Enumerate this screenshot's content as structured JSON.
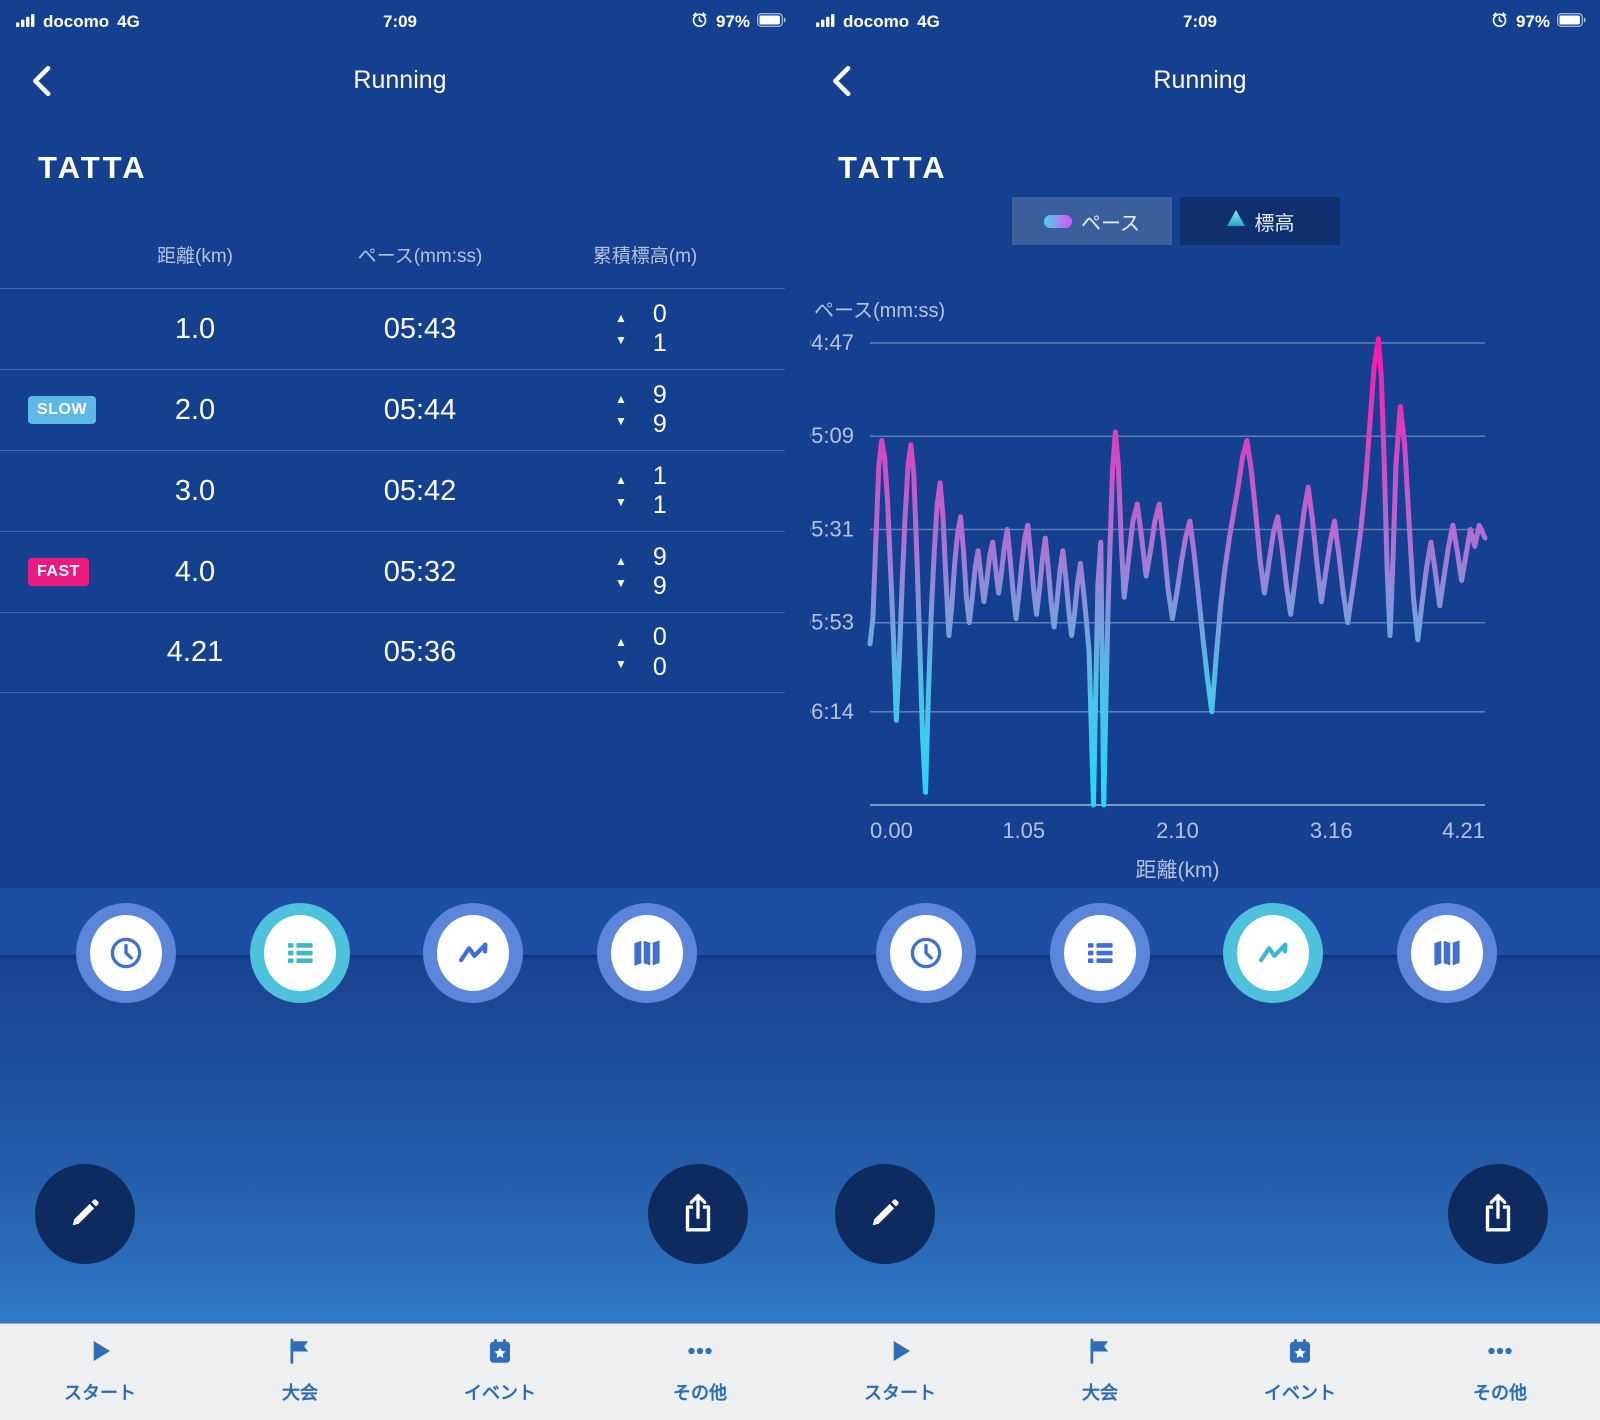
{
  "status_bar": {
    "carrier": "docomo",
    "network": "4G",
    "time": "7:09",
    "battery": "97%"
  },
  "nav": {
    "title": "Running"
  },
  "logo": "TATTA",
  "splits": {
    "headers": [
      "距離(km)",
      "ペース(mm:ss)",
      "累積標高(m)"
    ],
    "rows": [
      {
        "badge": "",
        "distance": "1.0",
        "pace": "05:43",
        "up": "0",
        "down": "1"
      },
      {
        "badge": "SLOW",
        "distance": "2.0",
        "pace": "05:44",
        "up": "9",
        "down": "9"
      },
      {
        "badge": "",
        "distance": "3.0",
        "pace": "05:42",
        "up": "1",
        "down": "1"
      },
      {
        "badge": "FAST",
        "distance": "4.0",
        "pace": "05:32",
        "up": "9",
        "down": "9"
      },
      {
        "badge": "",
        "distance": "4.21",
        "pace": "05:36",
        "up": "0",
        "down": "0"
      }
    ],
    "badge_colors": {
      "SLOW": "#5fb9e8",
      "FAST": "#ea1a7f"
    }
  },
  "chart_tabs": [
    {
      "label": "ペース",
      "selected": true
    },
    {
      "label": "標高",
      "selected": false
    }
  ],
  "chart_data": {
    "type": "line",
    "ylabel": "ペース(mm:ss)",
    "xlabel": "距離(km)",
    "y_ticks": [
      {
        "label": "04:47",
        "sec": 287
      },
      {
        "label": "05:09",
        "sec": 309
      },
      {
        "label": "05:31",
        "sec": 331
      },
      {
        "label": "05:53",
        "sec": 353
      },
      {
        "label": "06:14",
        "sec": 374
      }
    ],
    "x_ticks": [
      "0.00",
      "1.05",
      "2.10",
      "3.16",
      "4.21"
    ],
    "x_range": [
      0,
      4.21
    ],
    "y_range_sec": [
      287,
      396
    ],
    "grid": true,
    "legend_position": "none",
    "gradient": {
      "top": "#ff16ac",
      "mid": "#b06fd4",
      "low": "#4fc0e8",
      "bottom": "#27d8f7"
    },
    "points": [
      [
        0.0,
        358
      ],
      [
        0.02,
        352
      ],
      [
        0.04,
        334
      ],
      [
        0.06,
        316
      ],
      [
        0.08,
        310
      ],
      [
        0.1,
        314
      ],
      [
        0.12,
        324
      ],
      [
        0.14,
        340
      ],
      [
        0.16,
        356
      ],
      [
        0.18,
        376
      ],
      [
        0.2,
        362
      ],
      [
        0.22,
        344
      ],
      [
        0.24,
        328
      ],
      [
        0.26,
        316
      ],
      [
        0.28,
        311
      ],
      [
        0.3,
        318
      ],
      [
        0.32,
        336
      ],
      [
        0.34,
        358
      ],
      [
        0.36,
        380
      ],
      [
        0.38,
        393
      ],
      [
        0.4,
        370
      ],
      [
        0.42,
        350
      ],
      [
        0.44,
        336
      ],
      [
        0.46,
        325
      ],
      [
        0.48,
        320
      ],
      [
        0.5,
        328
      ],
      [
        0.52,
        343
      ],
      [
        0.54,
        356
      ],
      [
        0.56,
        349
      ],
      [
        0.58,
        339
      ],
      [
        0.6,
        332
      ],
      [
        0.62,
        328
      ],
      [
        0.64,
        336
      ],
      [
        0.66,
        347
      ],
      [
        0.68,
        353
      ],
      [
        0.7,
        347
      ],
      [
        0.72,
        340
      ],
      [
        0.74,
        336
      ],
      [
        0.76,
        342
      ],
      [
        0.78,
        348
      ],
      [
        0.8,
        343
      ],
      [
        0.82,
        337
      ],
      [
        0.84,
        334
      ],
      [
        0.86,
        340
      ],
      [
        0.88,
        346
      ],
      [
        0.9,
        341
      ],
      [
        0.92,
        335
      ],
      [
        0.94,
        331
      ],
      [
        0.96,
        338
      ],
      [
        0.98,
        346
      ],
      [
        1.0,
        352
      ],
      [
        1.02,
        346
      ],
      [
        1.04,
        339
      ],
      [
        1.06,
        333
      ],
      [
        1.08,
        330
      ],
      [
        1.1,
        337
      ],
      [
        1.12,
        345
      ],
      [
        1.14,
        351
      ],
      [
        1.16,
        345
      ],
      [
        1.18,
        338
      ],
      [
        1.2,
        333
      ],
      [
        1.22,
        340
      ],
      [
        1.24,
        348
      ],
      [
        1.26,
        354
      ],
      [
        1.28,
        348
      ],
      [
        1.3,
        341
      ],
      [
        1.32,
        336
      ],
      [
        1.34,
        342
      ],
      [
        1.36,
        350
      ],
      [
        1.38,
        356
      ],
      [
        1.4,
        351
      ],
      [
        1.42,
        344
      ],
      [
        1.44,
        339
      ],
      [
        1.46,
        345
      ],
      [
        1.48,
        352
      ],
      [
        1.5,
        360
      ],
      [
        1.53,
        396
      ],
      [
        1.56,
        344
      ],
      [
        1.58,
        334
      ],
      [
        1.6,
        396
      ],
      [
        1.63,
        349
      ],
      [
        1.66,
        317
      ],
      [
        1.68,
        308
      ],
      [
        1.7,
        316
      ],
      [
        1.72,
        334
      ],
      [
        1.74,
        347
      ],
      [
        1.76,
        341
      ],
      [
        1.78,
        335
      ],
      [
        1.8,
        329
      ],
      [
        1.83,
        325
      ],
      [
        1.86,
        333
      ],
      [
        1.89,
        342
      ],
      [
        1.92,
        336
      ],
      [
        1.95,
        329
      ],
      [
        1.98,
        325
      ],
      [
        2.01,
        334
      ],
      [
        2.04,
        345
      ],
      [
        2.07,
        352
      ],
      [
        2.1,
        346
      ],
      [
        2.13,
        339
      ],
      [
        2.16,
        333
      ],
      [
        2.19,
        329
      ],
      [
        2.22,
        337
      ],
      [
        2.25,
        347
      ],
      [
        2.28,
        357
      ],
      [
        2.31,
        366
      ],
      [
        2.34,
        374
      ],
      [
        2.37,
        361
      ],
      [
        2.4,
        349
      ],
      [
        2.43,
        340
      ],
      [
        2.46,
        333
      ],
      [
        2.49,
        327
      ],
      [
        2.52,
        321
      ],
      [
        2.55,
        314
      ],
      [
        2.58,
        310
      ],
      [
        2.61,
        317
      ],
      [
        2.64,
        327
      ],
      [
        2.67,
        338
      ],
      [
        2.7,
        346
      ],
      [
        2.73,
        339
      ],
      [
        2.76,
        332
      ],
      [
        2.79,
        328
      ],
      [
        2.82,
        335
      ],
      [
        2.85,
        344
      ],
      [
        2.88,
        351
      ],
      [
        2.91,
        343
      ],
      [
        2.94,
        335
      ],
      [
        2.97,
        327
      ],
      [
        3.0,
        321
      ],
      [
        3.03,
        329
      ],
      [
        3.06,
        339
      ],
      [
        3.09,
        348
      ],
      [
        3.12,
        341
      ],
      [
        3.15,
        334
      ],
      [
        3.18,
        329
      ],
      [
        3.21,
        337
      ],
      [
        3.24,
        346
      ],
      [
        3.27,
        353
      ],
      [
        3.3,
        346
      ],
      [
        3.33,
        339
      ],
      [
        3.36,
        331
      ],
      [
        3.39,
        321
      ],
      [
        3.42,
        307
      ],
      [
        3.45,
        293
      ],
      [
        3.48,
        286
      ],
      [
        3.5,
        295
      ],
      [
        3.52,
        315
      ],
      [
        3.54,
        340
      ],
      [
        3.56,
        356
      ],
      [
        3.58,
        338
      ],
      [
        3.6,
        316
      ],
      [
        3.63,
        302
      ],
      [
        3.66,
        311
      ],
      [
        3.69,
        329
      ],
      [
        3.72,
        347
      ],
      [
        3.75,
        357
      ],
      [
        3.78,
        348
      ],
      [
        3.81,
        340
      ],
      [
        3.84,
        334
      ],
      [
        3.87,
        341
      ],
      [
        3.9,
        349
      ],
      [
        3.93,
        342
      ],
      [
        3.96,
        335
      ],
      [
        3.99,
        330
      ],
      [
        4.02,
        336
      ],
      [
        4.05,
        343
      ],
      [
        4.08,
        337
      ],
      [
        4.11,
        331
      ],
      [
        4.14,
        335
      ],
      [
        4.17,
        330
      ],
      [
        4.21,
        333
      ]
    ]
  },
  "dock": {
    "items": [
      {
        "name": "history-clock",
        "icon": "clock"
      },
      {
        "name": "splits-list",
        "icon": "list"
      },
      {
        "name": "pace-chart",
        "icon": "pulse"
      },
      {
        "name": "route-map",
        "icon": "map"
      }
    ]
  },
  "left": {
    "dock_selected": 1
  },
  "right": {
    "dock_selected": 2
  },
  "tabbar": {
    "items": [
      {
        "label": "スタート",
        "icon": "play"
      },
      {
        "label": "大会",
        "icon": "flag"
      },
      {
        "label": "イベント",
        "icon": "calendar-star"
      },
      {
        "label": "その他",
        "icon": "dots"
      }
    ]
  },
  "colors": {
    "background_navy": "#14408f",
    "dock_band": "#1e4da4",
    "bottom_gradient_end": "#3079c6",
    "dock_ring_blue": "#5b86da",
    "dock_ring_selected_cyan": "#4ec1dc",
    "fab_navy": "#0d2b5f",
    "tabbar_blue": "#2a6cb5",
    "badge_slow": "#5fb9e8",
    "badge_fast": "#ea1a7f"
  }
}
